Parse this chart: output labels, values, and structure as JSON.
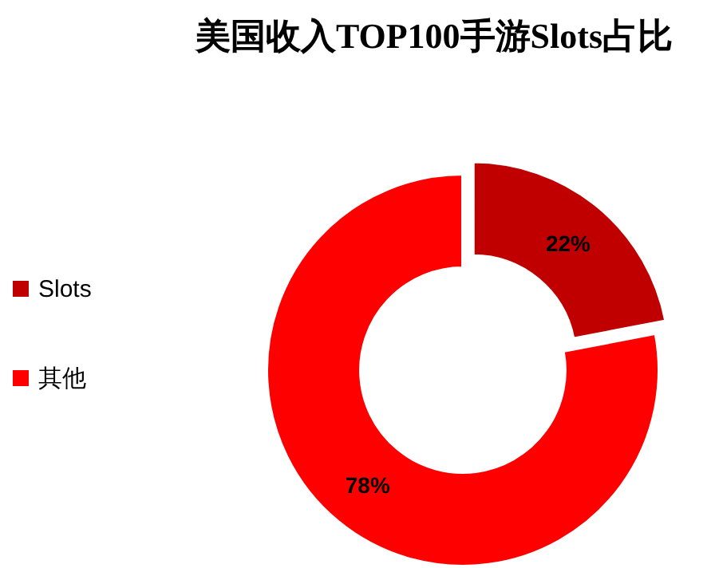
{
  "chart_data": {
    "type": "donut",
    "title": "美国收入TOP100手游Slots占比",
    "categories": [
      "Slots",
      "其他"
    ],
    "values": [
      22,
      78
    ],
    "colors": [
      "#c00000",
      "#ff0000"
    ],
    "value_labels": [
      "22%",
      "78%"
    ],
    "legend": "left"
  }
}
